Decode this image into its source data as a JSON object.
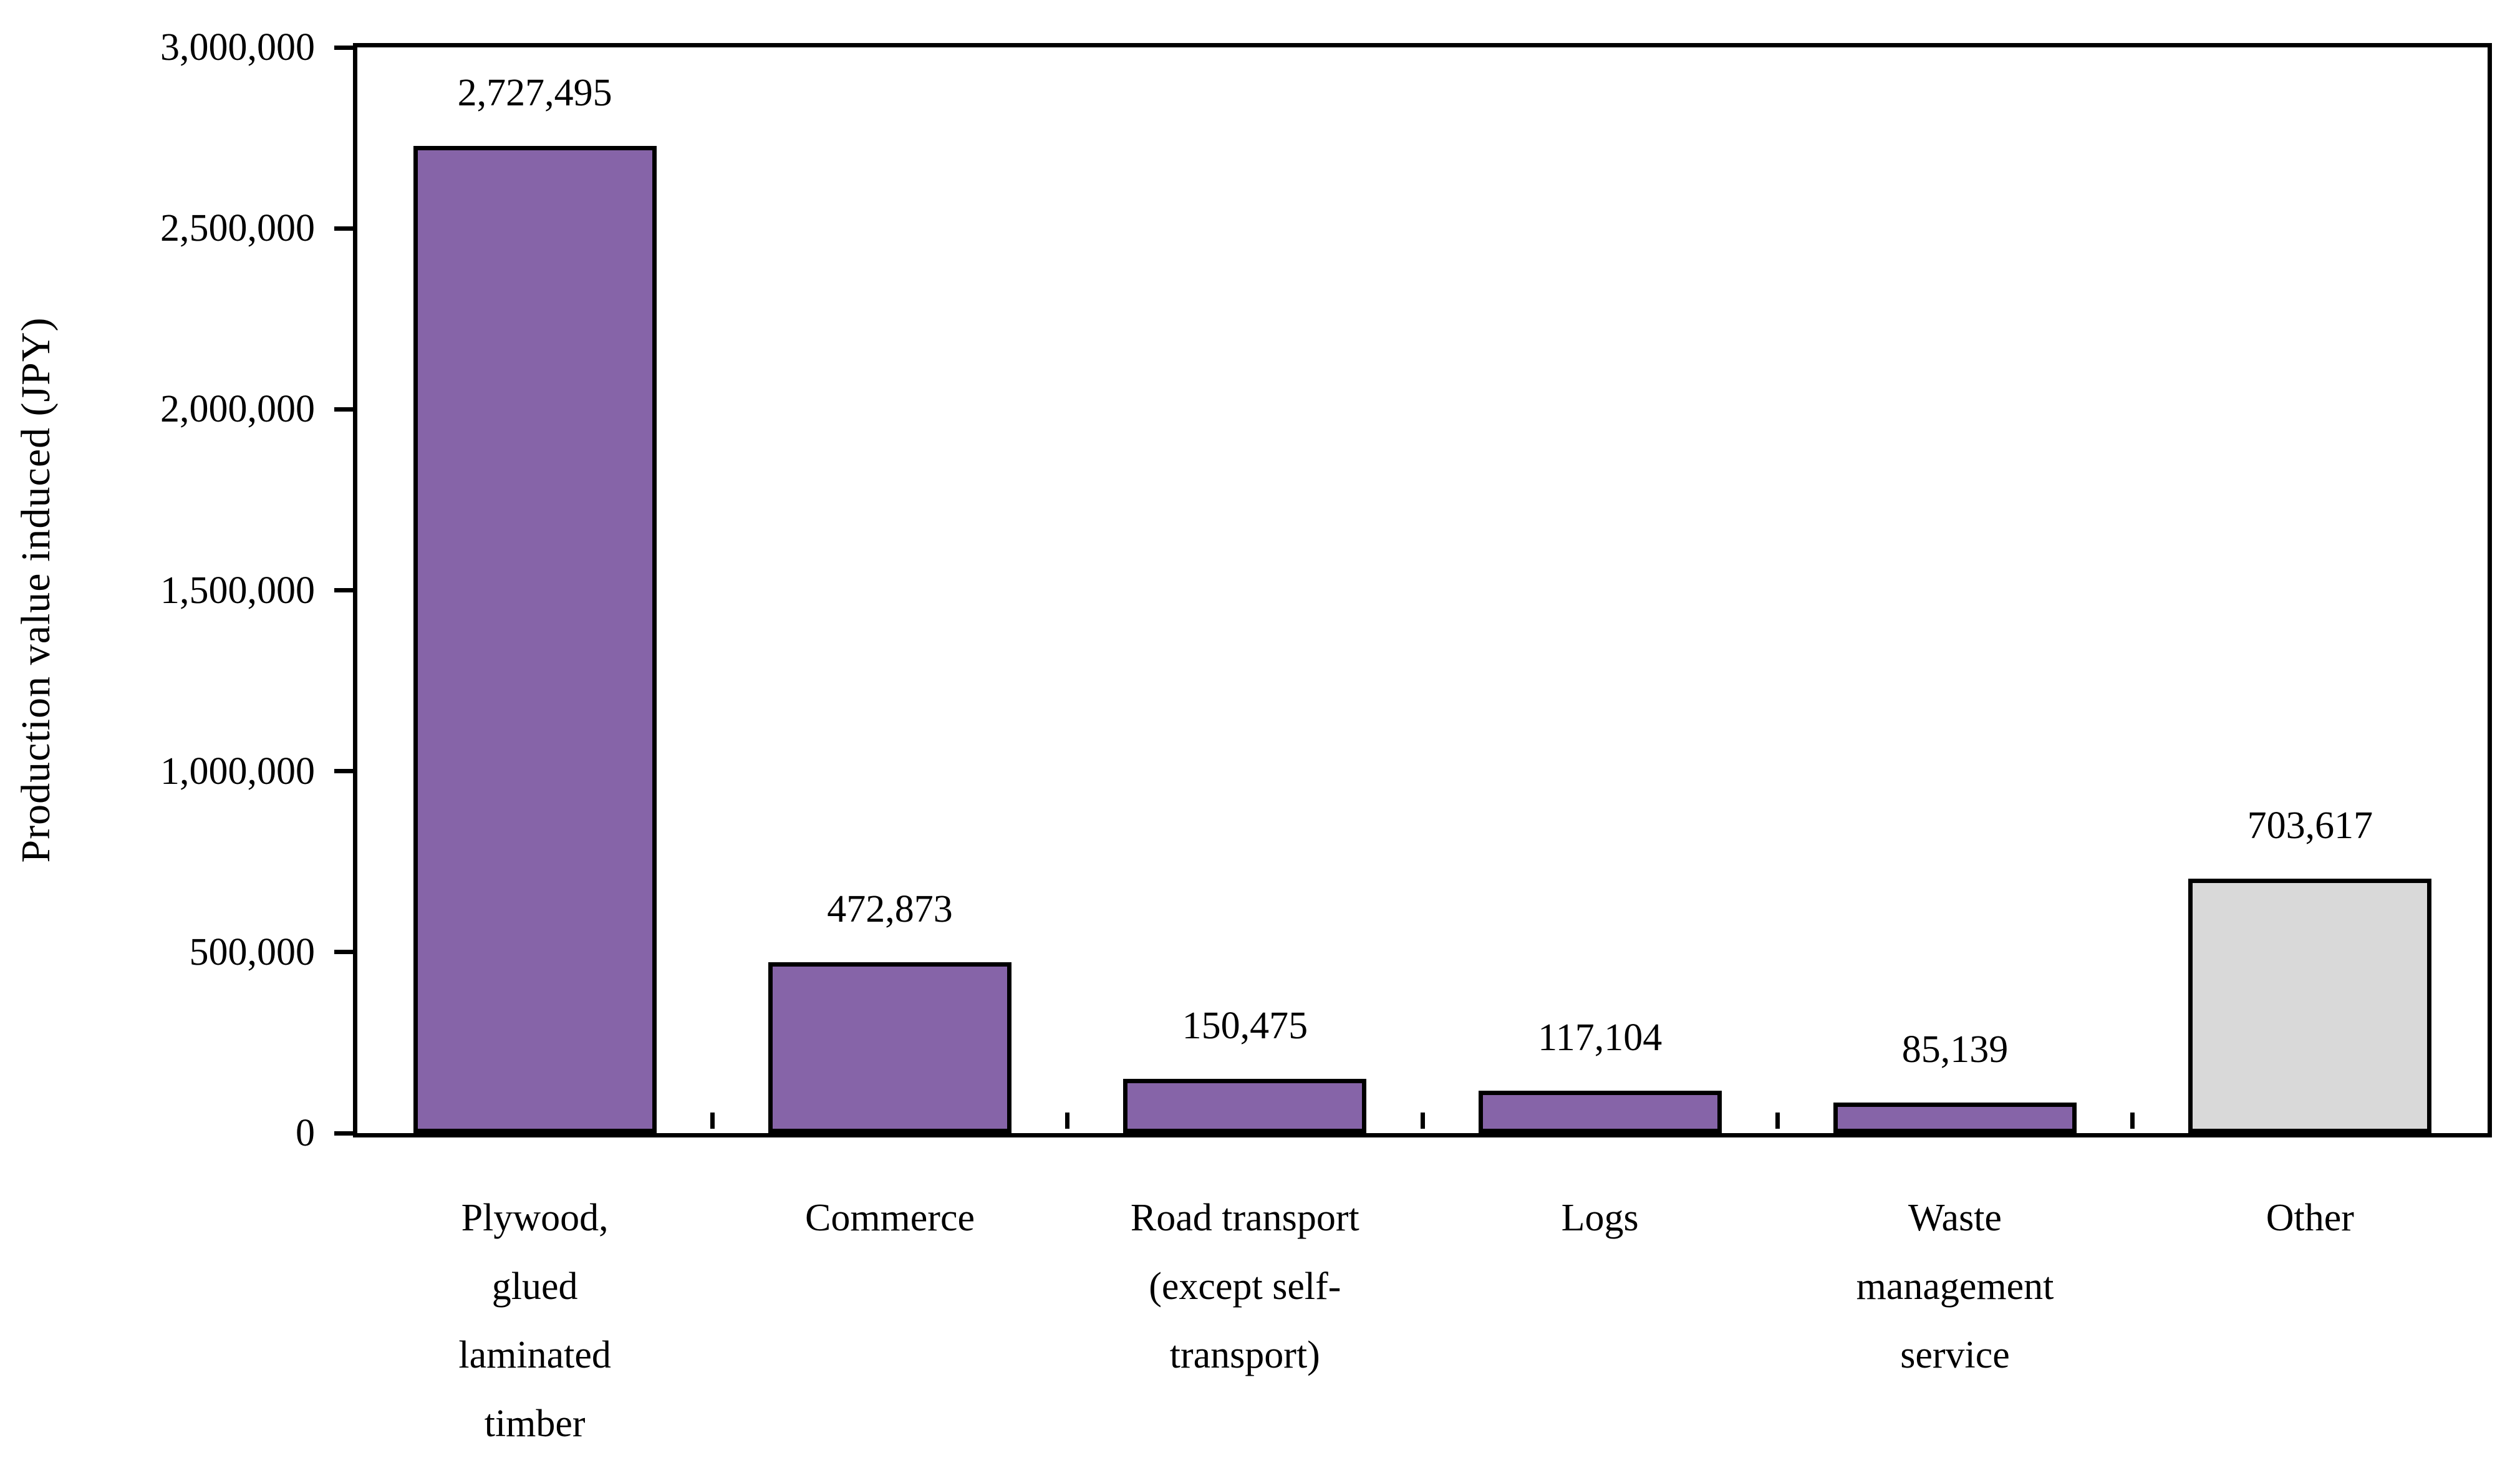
{
  "chart_data": {
    "type": "bar",
    "title": "",
    "ylabel": "Production value induced (JPY)",
    "xlabel": "",
    "ylim": [
      0,
      3000000
    ],
    "ytick_step": 500000,
    "grid": "off",
    "legend": "none",
    "background": "#FFFFFF",
    "axis_color": "#000000",
    "bar_border_color": "#000000",
    "yticks": [
      {
        "value": 3000000,
        "label": "3,000,000"
      },
      {
        "value": 2500000,
        "label": "2,500,000"
      },
      {
        "value": 2000000,
        "label": "2,000,000"
      },
      {
        "value": 1500000,
        "label": "1,500,000"
      },
      {
        "value": 1000000,
        "label": "1,000,000"
      },
      {
        "value": 500000,
        "label": "500,000"
      },
      {
        "value": 0,
        "label": "0"
      }
    ],
    "categories": [
      "Plywood, glued laminated timber",
      "Commerce",
      "Road transport (except self-transport)",
      "Logs",
      "Waste management service",
      "Other"
    ],
    "category_lines": [
      [
        "Plywood,",
        "glued",
        "laminated",
        "timber"
      ],
      [
        "Commerce"
      ],
      [
        "Road transport",
        "(except self-",
        "transport)"
      ],
      [
        "Logs"
      ],
      [
        "Waste",
        "management",
        "service"
      ],
      [
        "Other"
      ]
    ],
    "values": [
      2727495,
      472873,
      150475,
      117104,
      85139,
      703617
    ],
    "value_labels": [
      "2,727,495",
      "472,873",
      "150,475",
      "117,104",
      "85,139",
      "703,617"
    ],
    "bar_colors": [
      "#8664A8",
      "#8664A8",
      "#8664A8",
      "#8664A8",
      "#8664A8",
      "#D9D9D9"
    ]
  }
}
